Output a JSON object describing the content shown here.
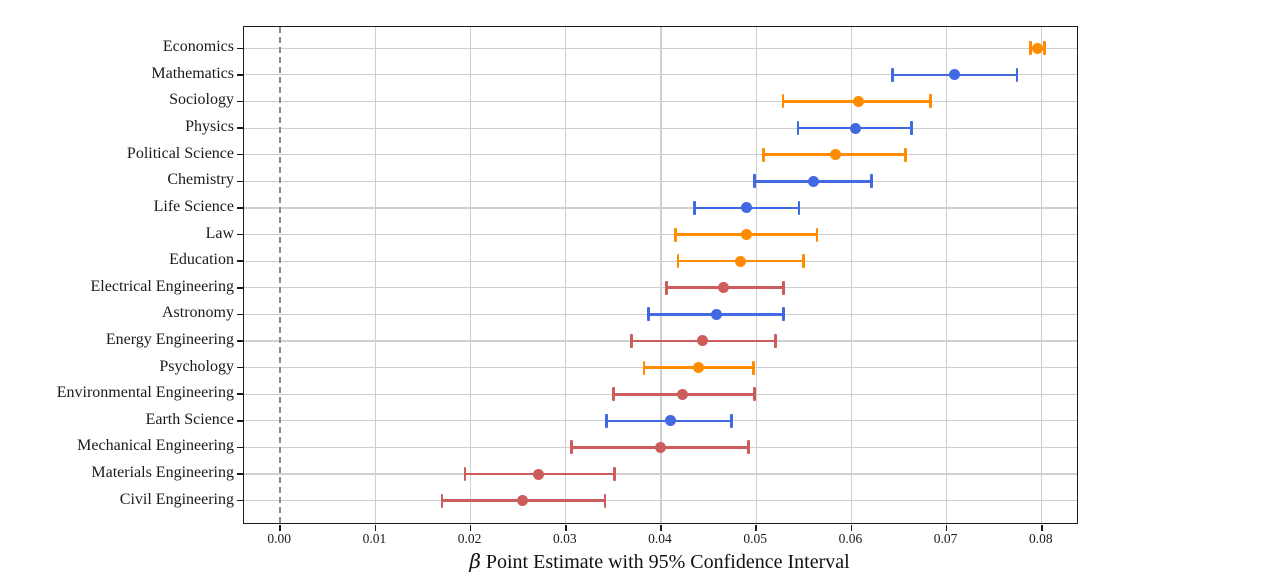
{
  "figure": {
    "background": "#ffffff",
    "border_color": "#1c1c1c",
    "gridline_color": "#cfcfcf"
  },
  "chart_data": {
    "type": "scatter",
    "subtype": "horizontal-point-estimates-with-95ci-errorbars",
    "title": "",
    "xlabel": "β Point Estimate with 95% Confidence Interval",
    "xlabel_beta": "β",
    "xlabel_rest": " Point Estimate with 95% Confidence Interval",
    "ylabel": "",
    "grid": true,
    "legend": "none",
    "xlim": [
      -0.0038,
      0.0837
    ],
    "x_ticks": [
      0.0,
      0.01,
      0.02,
      0.03,
      0.04,
      0.05,
      0.06,
      0.07,
      0.08
    ],
    "x_tick_labels": [
      "0.00",
      "0.01",
      "0.02",
      "0.03",
      "0.04",
      "0.05",
      "0.06",
      "0.07",
      "0.08"
    ],
    "zero_reference_line": {
      "x": 0.0,
      "style": "dashed",
      "color": "#8a8a8a"
    },
    "group_colors": {
      "social_science": "#FF8C00",
      "natural_science": "#4169E1",
      "engineering": "#CD5C5C"
    },
    "points": [
      {
        "label": "Economics",
        "group": "social_science",
        "value": 0.0795,
        "ci_low": 0.0788,
        "ci_high": 0.0803
      },
      {
        "label": "Mathematics",
        "group": "natural_science",
        "value": 0.0708,
        "ci_low": 0.0643,
        "ci_high": 0.0774
      },
      {
        "label": "Sociology",
        "group": "social_science",
        "value": 0.0607,
        "ci_low": 0.0528,
        "ci_high": 0.0683
      },
      {
        "label": "Physics",
        "group": "natural_science",
        "value": 0.0604,
        "ci_low": 0.0544,
        "ci_high": 0.0663
      },
      {
        "label": "Political Science",
        "group": "social_science",
        "value": 0.0583,
        "ci_low": 0.0508,
        "ci_high": 0.0657
      },
      {
        "label": "Chemistry",
        "group": "natural_science",
        "value": 0.056,
        "ci_low": 0.0498,
        "ci_high": 0.0621
      },
      {
        "label": "Life Science",
        "group": "natural_science",
        "value": 0.049,
        "ci_low": 0.0435,
        "ci_high": 0.0545
      },
      {
        "label": "Law",
        "group": "social_science",
        "value": 0.049,
        "ci_low": 0.0415,
        "ci_high": 0.0564
      },
      {
        "label": "Education",
        "group": "social_science",
        "value": 0.0484,
        "ci_low": 0.0418,
        "ci_high": 0.055
      },
      {
        "label": "Electrical Engineering",
        "group": "engineering",
        "value": 0.0466,
        "ci_low": 0.0406,
        "ci_high": 0.0529
      },
      {
        "label": "Astronomy",
        "group": "natural_science",
        "value": 0.0458,
        "ci_low": 0.0387,
        "ci_high": 0.0529
      },
      {
        "label": "Energy Engineering",
        "group": "engineering",
        "value": 0.0444,
        "ci_low": 0.0369,
        "ci_high": 0.052
      },
      {
        "label": "Psychology",
        "group": "social_science",
        "value": 0.0439,
        "ci_low": 0.0382,
        "ci_high": 0.0497
      },
      {
        "label": "Environmental Engineering",
        "group": "engineering",
        "value": 0.0423,
        "ci_low": 0.035,
        "ci_high": 0.0498
      },
      {
        "label": "Earth Science",
        "group": "natural_science",
        "value": 0.041,
        "ci_low": 0.0343,
        "ci_high": 0.0474
      },
      {
        "label": "Mechanical Engineering",
        "group": "engineering",
        "value": 0.0399,
        "ci_low": 0.0306,
        "ci_high": 0.0492
      },
      {
        "label": "Materials Engineering",
        "group": "engineering",
        "value": 0.0271,
        "ci_low": 0.0194,
        "ci_high": 0.0351
      },
      {
        "label": "Civil Engineering",
        "group": "engineering",
        "value": 0.0255,
        "ci_low": 0.017,
        "ci_high": 0.0341
      }
    ]
  }
}
